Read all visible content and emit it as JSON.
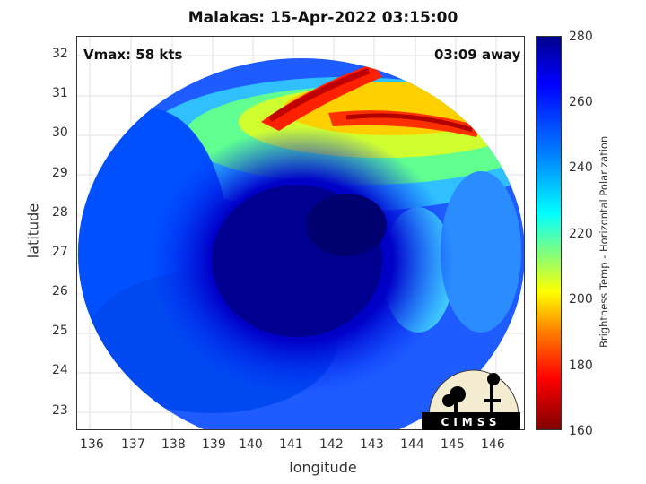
{
  "title": "Malakas: 15-Apr-2022 03:15:00",
  "vmax": "Vmax: 58 kts",
  "away": "03:09 away",
  "xlabel": "longitude",
  "ylabel": "latitude",
  "colorbar_label": "Brightness Temp - Horizontal Polarization",
  "x_ticks": [
    "136",
    "137",
    "138",
    "139",
    "140",
    "141",
    "142",
    "143",
    "144",
    "145",
    "146"
  ],
  "y_ticks": [
    "32",
    "31",
    "30",
    "29",
    "28",
    "27",
    "26",
    "25",
    "24",
    "23"
  ],
  "cb_ticks": [
    "280",
    "260",
    "240",
    "220",
    "200",
    "180",
    "160"
  ],
  "logo_text": "CIMSS",
  "colors": {
    "deep_blue": "#00008f",
    "blue": "#0000ff",
    "cyan": "#00ffff",
    "yellow": "#ffff00",
    "red": "#ff0000"
  }
}
